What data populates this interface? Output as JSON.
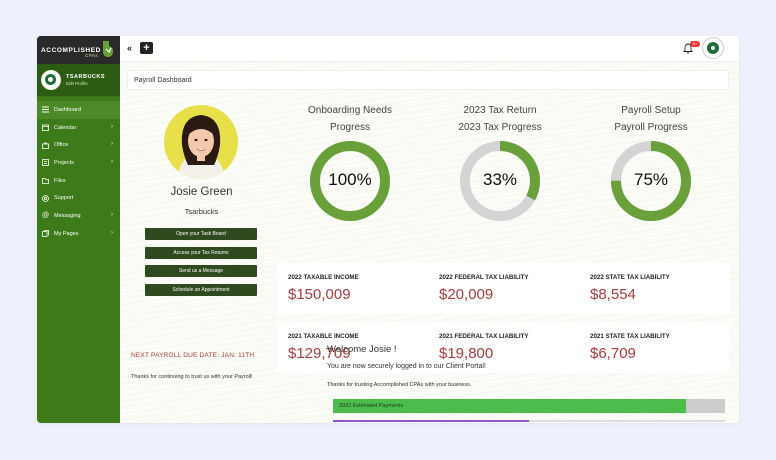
{
  "brand": {
    "name": "ACCOMPLISHED",
    "sub": "CPAs"
  },
  "profile": {
    "username": "TSARBUCKS",
    "edit_label": "Edit Profile"
  },
  "nav": [
    {
      "label": "Dashboard",
      "icon": "menu-icon",
      "active": true,
      "has_submenu": false
    },
    {
      "label": "Calendar",
      "icon": "calendar-icon",
      "has_submenu": true
    },
    {
      "label": "Office",
      "icon": "briefcase-icon",
      "has_submenu": true
    },
    {
      "label": "Projects",
      "icon": "projects-icon",
      "has_submenu": true
    },
    {
      "label": "Files",
      "icon": "folder-icon",
      "has_submenu": false
    },
    {
      "label": "Support",
      "icon": "support-icon",
      "has_submenu": false
    },
    {
      "label": "Messaging",
      "icon": "at-icon",
      "has_submenu": true
    },
    {
      "label": "My Pages",
      "icon": "pages-icon",
      "has_submenu": true
    }
  ],
  "topbar": {
    "collapse_glyph": "«",
    "add_glyph": "+",
    "notification_count": "9+"
  },
  "page": {
    "title": "Payroll Dashboard"
  },
  "client": {
    "name": "Josie Green",
    "company": "Tsarbucks",
    "buttons": [
      "Open your Task Board",
      "Access your Tax Returns",
      "Send us a Message",
      "Schedule an Appointment"
    ],
    "due_text": "NEXT PAYROLL DUE DATE: JAN. 11TH",
    "thanks_text": "Thanks for continuing to trust us with your Payroll!"
  },
  "gauges": [
    {
      "title": "Onboarding Needs",
      "subtitle": "Progress",
      "percent": 100,
      "label": "100%"
    },
    {
      "title": "2023 Tax Return",
      "subtitle": "2023 Tax Progress",
      "percent": 33,
      "label": "33%"
    },
    {
      "title": "Payroll Setup",
      "subtitle": "Payroll Progress",
      "percent": 75,
      "label": "75%"
    }
  ],
  "metrics_2022": [
    {
      "label": "2022 TAXABLE INCOME",
      "value": "$150,009"
    },
    {
      "label": "2022 FEDERAL TAX LIABILITY",
      "value": "$20,009"
    },
    {
      "label": "2022 STATE TAX LIABILITY",
      "value": "$8,554"
    }
  ],
  "metrics_2021": [
    {
      "label": "2021 TAXABLE INCOME",
      "value": "$129,709"
    },
    {
      "label": "2021 FEDERAL TAX LIABILITY",
      "value": "$19,800"
    },
    {
      "label": "2021 STATE TAX LIABILITY",
      "value": "$6,709"
    }
  ],
  "welcome": {
    "title": "Welcome Josie !",
    "line1": "You are now securely logged in to our Client Portal!",
    "line2": "Thanks for trusting Accomplished CPAs with your business."
  },
  "payments": {
    "label": "2022 Estimated Payments",
    "percent": 90,
    "secondary_percent": 50
  },
  "colors": {
    "brand_green": "#3c7a1a",
    "gauge_green": "#6aa03a",
    "gauge_track": "#d4d4d4",
    "money_red": "#a33d3d",
    "progress_green": "#4cbd4c",
    "progress_purple": "#8f58c7"
  }
}
